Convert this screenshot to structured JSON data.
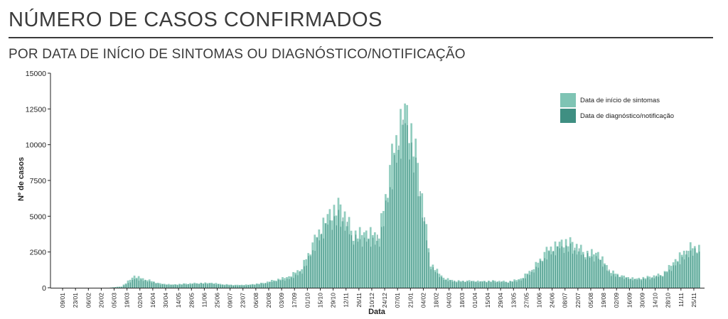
{
  "header": {
    "title": "NÚMERO DE CASOS CONFIRMADOS",
    "subtitle": "POR DATA DE INÍCIO DE SINTOMAS OU DIAGNÓSTICO/NOTIFICAÇÃO"
  },
  "colors": {
    "symptom_onset": "#7fc4b4",
    "diagnosis": "#3f8f82"
  },
  "chart_data": {
    "type": "bar",
    "xlabel": "Data",
    "ylabel": "Nº de casos",
    "ylim": [
      0,
      15000
    ],
    "yticks": [
      0,
      2500,
      5000,
      7500,
      10000,
      12500,
      15000
    ],
    "legend_position": "top-right",
    "x_tick_labels": [
      "09/01",
      "23/01",
      "06/02",
      "20/02",
      "05/03",
      "19/03",
      "02/04",
      "16/04",
      "30/04",
      "14/05",
      "28/05",
      "11/06",
      "25/06",
      "09/07",
      "23/07",
      "06/08",
      "20/08",
      "03/09",
      "17/09",
      "01/10",
      "15/10",
      "29/10",
      "12/11",
      "26/11",
      "10/12",
      "24/12",
      "07/01",
      "21/01",
      "04/02",
      "18/02",
      "04/03",
      "18/03",
      "01/04",
      "15/04",
      "29/04",
      "13/05",
      "27/05",
      "10/06",
      "24/06",
      "08/07",
      "22/07",
      "05/08",
      "19/08",
      "02/09",
      "16/09",
      "30/09",
      "14/10",
      "28/10",
      "11/11",
      "25/11"
    ],
    "series": [
      {
        "name": "Data de início de sintomas",
        "values": [
          0,
          0,
          0,
          0,
          0,
          100,
          850,
          600,
          300,
          250,
          300,
          350,
          350,
          250,
          200,
          250,
          350,
          600,
          800,
          1500,
          3500,
          5600,
          6000,
          4000,
          4000,
          4000,
          9500,
          14000,
          9000,
          1800,
          700,
          500,
          500,
          500,
          500,
          450,
          650,
          1500,
          2700,
          3500,
          3300,
          2600,
          2500,
          1200,
          800,
          700,
          800,
          1000,
          2000,
          3000
        ]
      },
      {
        "name": "Data de diagnóstico/notificação",
        "values": [
          0,
          0,
          0,
          0,
          0,
          50,
          650,
          500,
          250,
          200,
          250,
          300,
          300,
          200,
          150,
          200,
          300,
          500,
          650,
          1200,
          3000,
          4800,
          5200,
          3500,
          3500,
          3500,
          8000,
          12500,
          7800,
          1500,
          600,
          450,
          450,
          450,
          450,
          400,
          550,
          1300,
          2300,
          3000,
          2900,
          2300,
          2200,
          1000,
          700,
          600,
          700,
          900,
          1700,
          2600
        ]
      }
    ]
  }
}
